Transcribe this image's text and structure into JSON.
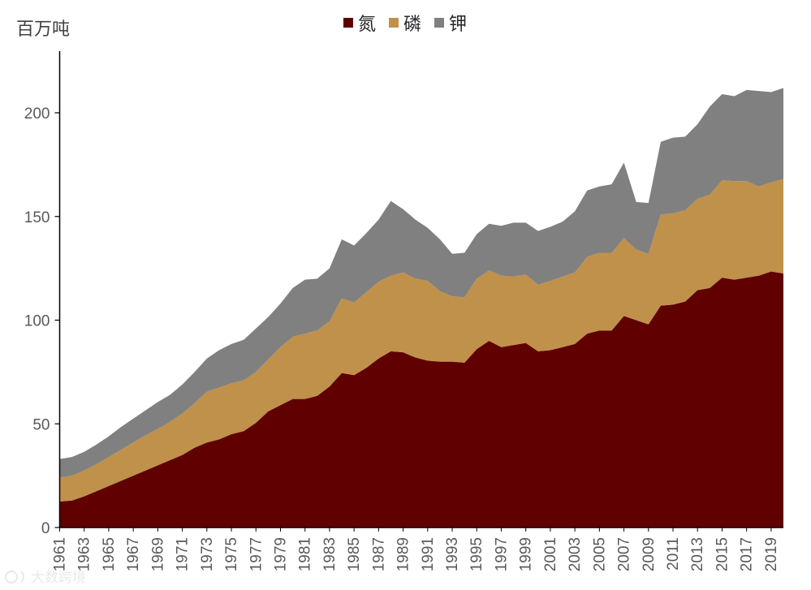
{
  "chart_data": {
    "type": "area",
    "stacked": true,
    "title": "",
    "ylabel": "百万吨",
    "xlabel": "",
    "ylim": [
      0,
      225
    ],
    "yticks": [
      0,
      50,
      100,
      150,
      200
    ],
    "legend_position": "top-center",
    "grid": false,
    "x": [
      1961,
      1962,
      1963,
      1964,
      1965,
      1966,
      1967,
      1968,
      1969,
      1970,
      1971,
      1972,
      1973,
      1974,
      1975,
      1976,
      1977,
      1978,
      1979,
      1980,
      1981,
      1982,
      1983,
      1984,
      1985,
      1986,
      1987,
      1988,
      1989,
      1990,
      1991,
      1992,
      1993,
      1994,
      1995,
      1996,
      1997,
      1998,
      1999,
      2000,
      2001,
      2002,
      2003,
      2004,
      2005,
      2006,
      2007,
      2008,
      2009,
      2010,
      2011,
      2012,
      2013,
      2014,
      2015,
      2016,
      2017,
      2018,
      2019,
      2020
    ],
    "xticks": [
      "1961",
      "1963",
      "1965",
      "1967",
      "1969",
      "1971",
      "1973",
      "1975",
      "1977",
      "1979",
      "1981",
      "1983",
      "1985",
      "1987",
      "1989",
      "1991",
      "1993",
      "1995",
      "1997",
      "1999",
      "2001",
      "2003",
      "2005",
      "2007",
      "2009",
      "2011",
      "2013",
      "2015",
      "2017",
      "2019"
    ],
    "series": [
      {
        "name": "氮",
        "color": "#600000",
        "values": [
          12.5,
          13,
          15,
          17.5,
          20,
          22.5,
          25,
          27.5,
          30,
          32.5,
          35,
          38.5,
          41,
          42.5,
          45,
          46.5,
          50.5,
          56,
          59,
          62,
          62,
          63.5,
          68,
          74.5,
          73.5,
          77,
          81.5,
          85,
          84.5,
          82,
          80.5,
          80,
          80,
          79.5,
          86,
          90,
          87,
          88,
          89,
          85,
          85.5,
          87,
          88.5,
          93.5,
          95,
          95,
          102,
          100,
          98,
          107,
          107.5,
          109,
          114.5,
          115.5,
          120.5,
          119.5,
          120.5,
          121.5,
          123.5,
          122.5
        ]
      },
      {
        "name": "磷",
        "color": "#C0914A",
        "values": [
          11.5,
          12,
          12.5,
          13,
          14,
          15,
          16,
          17,
          17.5,
          18.5,
          20,
          21.5,
          24.5,
          25,
          24.5,
          24.5,
          24.5,
          25,
          28,
          30,
          31.5,
          31.5,
          31.5,
          36,
          35,
          36.5,
          37,
          36.5,
          38.5,
          38,
          38.5,
          34,
          31.5,
          31.5,
          34,
          34,
          34.5,
          33,
          33,
          32,
          33.5,
          34,
          34.5,
          37,
          37.5,
          37.5,
          37.5,
          34,
          34,
          44,
          44,
          44,
          44,
          45,
          47,
          47.5,
          46.5,
          43,
          43,
          45.5
        ]
      },
      {
        "name": "钾",
        "color": "#808080",
        "values": [
          9,
          9,
          9,
          9.5,
          10,
          11,
          11.5,
          12,
          13,
          13,
          14,
          15,
          16,
          18,
          19,
          19.5,
          21,
          20.5,
          21,
          23.5,
          26,
          25,
          25.5,
          28.5,
          27.5,
          28.5,
          30,
          36,
          30.5,
          28.5,
          25.5,
          25,
          20.5,
          21.5,
          21.5,
          22.5,
          24,
          26,
          25,
          26,
          26,
          26.5,
          29.5,
          32,
          32,
          33,
          36.5,
          23,
          24.5,
          35,
          36.5,
          35.5,
          36,
          42.5,
          41.5,
          41,
          44,
          46,
          43.5,
          44
        ]
      }
    ]
  },
  "watermark": {
    "text": "大数跨境"
  }
}
